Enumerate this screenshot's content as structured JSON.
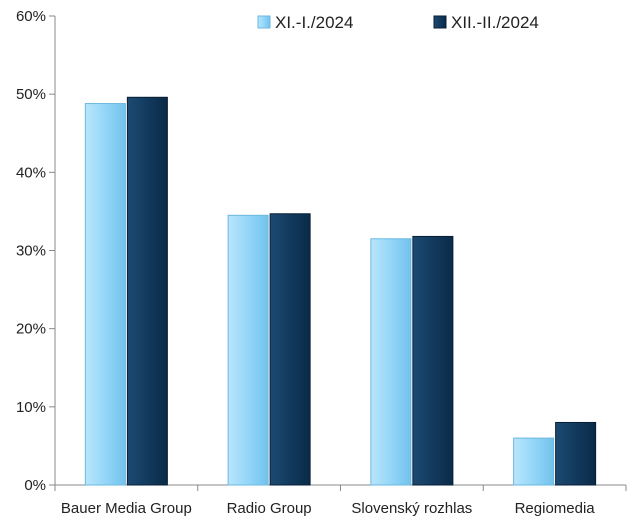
{
  "chart_data": {
    "type": "bar",
    "categories": [
      "Bauer Media Group",
      "Radio Group",
      "Slovenský rozhlas",
      "Regiomedia"
    ],
    "series": [
      {
        "name": "XI.-I./2024",
        "values": [
          48.8,
          34.5,
          31.5,
          6.0
        ],
        "color": "#8fd3f7"
      },
      {
        "name": "XII.-II./2024",
        "values": [
          49.6,
          34.7,
          31.8,
          8.0
        ],
        "color": "#0f3557"
      }
    ],
    "ylim": [
      0,
      60
    ],
    "yticks": [
      "0%",
      "10%",
      "20%",
      "30%",
      "40%",
      "50%",
      "60%"
    ],
    "grid": false,
    "legend": "top-right",
    "title": "",
    "xlabel": "",
    "ylabel": ""
  }
}
